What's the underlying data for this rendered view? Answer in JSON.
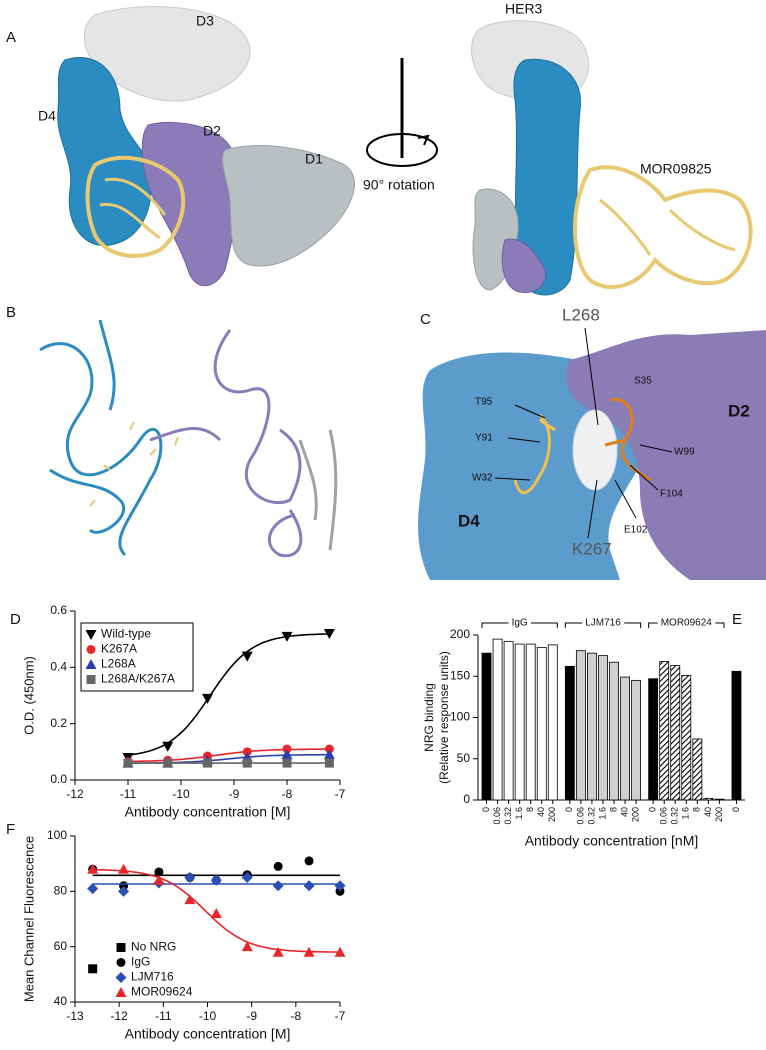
{
  "panels": {
    "a": {
      "label": "A",
      "annotations": [
        "D3",
        "D4",
        "D2",
        "D1",
        "HER3",
        "90° rotation",
        "MOR09825"
      ]
    },
    "b": {
      "label": "B"
    },
    "c": {
      "label": "C",
      "annotations": [
        "L268",
        "S35",
        "T95",
        "Y91",
        "W32",
        "W99",
        "F104",
        "E102",
        "K267",
        "D2",
        "D4"
      ]
    }
  },
  "chart_data": [
    {
      "type": "line",
      "panel_label": "D",
      "xlabel": "Antibody concentration [M]",
      "ylabel": "O.D. (450nm)",
      "xlim": [
        -12,
        -7
      ],
      "xticks": [
        -12,
        -11,
        -10,
        -9,
        -8,
        -7
      ],
      "ylim": [
        0,
        0.6
      ],
      "yticks": [
        {
          "value": 0,
          "label": "0.0"
        },
        0.2,
        0.4,
        0.6
      ],
      "legend": "upper left",
      "x": [
        -11,
        -10.25,
        -9.5,
        -8.75,
        -8,
        -7.2
      ],
      "series": [
        {
          "name": "Wild-type",
          "color": "#000000",
          "marker": "triangle-down",
          "fit": "sigmoid",
          "values": [
            0.08,
            0.12,
            0.29,
            0.44,
            0.51,
            0.52
          ]
        },
        {
          "name": "K267A",
          "color": "#e8262a",
          "marker": "circle",
          "fit": "sigmoid",
          "values": [
            0.065,
            0.07,
            0.085,
            0.1,
            0.11,
            0.11
          ]
        },
        {
          "name": "L268A",
          "color": "#2a3fae",
          "marker": "triangle-up",
          "fit": "sigmoid",
          "values": [
            0.06,
            0.06,
            0.07,
            0.08,
            0.09,
            0.09
          ]
        },
        {
          "name": "L268A/K267A",
          "color": "#666666",
          "marker": "square",
          "fit": "sigmoid",
          "values": [
            0.06,
            0.06,
            0.06,
            0.06,
            0.06,
            0.06
          ]
        }
      ]
    },
    {
      "type": "bar",
      "panel_label": "E",
      "xlabel": "Antibody concentration [nM]",
      "ylabel": [
        "NRG binding",
        "(Relative response units)"
      ],
      "ylim": [
        0,
        200
      ],
      "yticks": [
        0,
        50,
        100,
        150,
        200
      ],
      "first_bar_color": "#000000",
      "groups": [
        {
          "name": "IgG",
          "fill": "#ffffff",
          "categories": [
            "0",
            "0.06",
            "0.32",
            "1.6",
            "8",
            "40",
            "200"
          ],
          "values": [
            178,
            195,
            192,
            189,
            189,
            185,
            188
          ]
        },
        {
          "name": "LJM716",
          "fill": "#d0d0d0",
          "categories": [
            "0",
            "0.06",
            "0.32",
            "1.6",
            "8",
            "40",
            "200"
          ],
          "values": [
            162,
            181,
            178,
            175,
            167,
            149,
            145
          ]
        },
        {
          "name": "MOR09624",
          "fill": "hatch",
          "categories": [
            "0",
            "0.06",
            "0.32",
            "1.6",
            "8",
            "40",
            "200"
          ],
          "values": [
            147,
            168,
            163,
            151,
            74,
            2,
            1
          ]
        },
        {
          "fill": "#000000",
          "categories": [
            "0"
          ],
          "values": [
            156
          ]
        }
      ]
    },
    {
      "type": "scatter",
      "panel_label": "F",
      "xlabel": "Antibody concentration [M]",
      "ylabel": "Mean Channel Fluorescence",
      "xlim": [
        -13,
        -7
      ],
      "xticks": [
        -13,
        -12,
        -11,
        -10,
        -9,
        -8,
        -7
      ],
      "ylim": [
        40,
        100
      ],
      "yticks": [
        40,
        60,
        80,
        100
      ],
      "legend": "lower left",
      "series": [
        {
          "name": "No NRG",
          "color": "#000000",
          "marker": "square",
          "x": [
            -12.6
          ],
          "values": [
            52
          ]
        },
        {
          "name": "IgG",
          "color": "#000000",
          "marker": "circle",
          "fit": "flat",
          "x": [
            -12.6,
            -11.9,
            -11.1,
            -10.4,
            -9.8,
            -9.1,
            -8.4,
            -7.7,
            -7.0
          ],
          "values": [
            88,
            82,
            87,
            85,
            84,
            86,
            89,
            91,
            80
          ]
        },
        {
          "name": "LJM716",
          "color": "#2a4fb8",
          "marker": "diamond",
          "fit": "flat",
          "x": [
            -12.6,
            -11.9,
            -11.1,
            -10.4,
            -9.8,
            -9.1,
            -8.4,
            -7.7,
            -7.0
          ],
          "values": [
            81,
            80,
            83,
            85,
            84,
            85,
            82,
            82,
            82
          ]
        },
        {
          "name": "MOR09624",
          "color": "#e8262a",
          "marker": "triangle-up",
          "fit": "sigmoid",
          "x": [
            -12.6,
            -11.9,
            -11.1,
            -10.4,
            -9.8,
            -9.1,
            -8.4,
            -7.7,
            -7.0
          ],
          "values": [
            88,
            88,
            84,
            77,
            72,
            60,
            58,
            58,
            58
          ]
        }
      ]
    }
  ]
}
